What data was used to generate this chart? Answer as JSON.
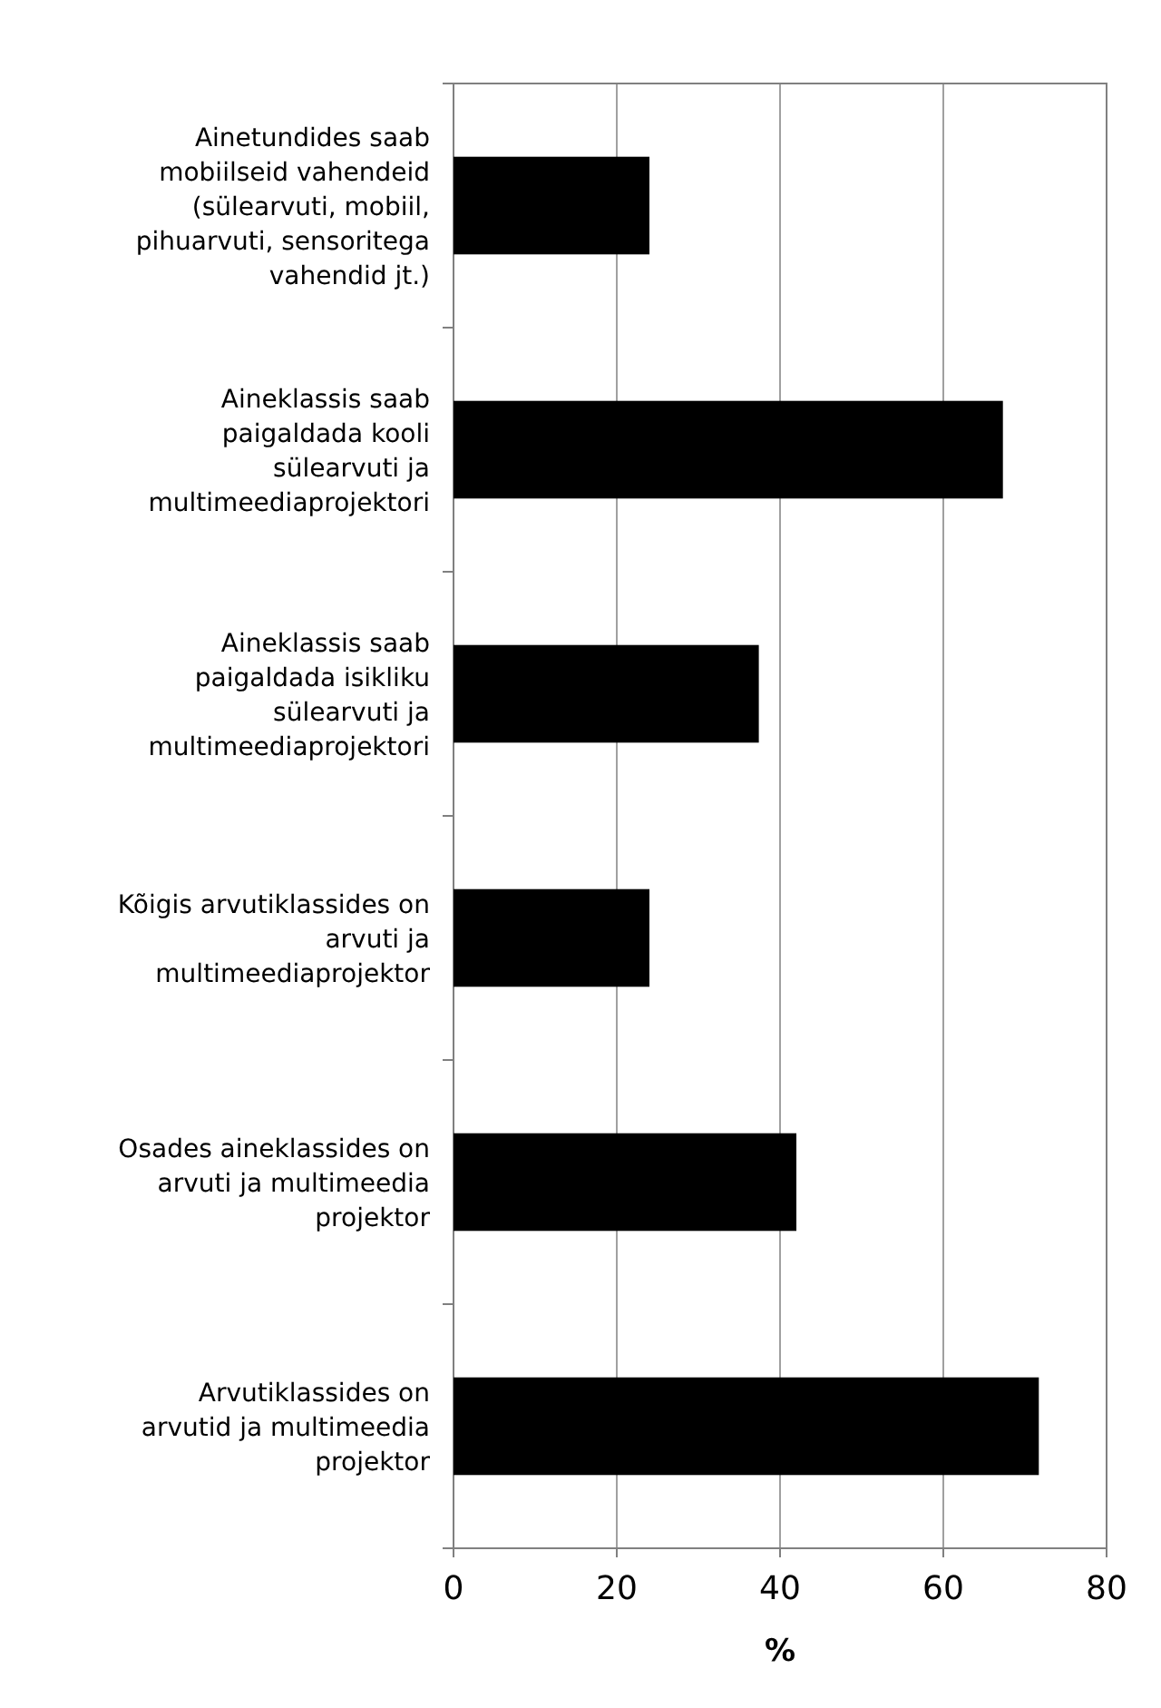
{
  "chart_data": {
    "type": "bar",
    "orientation": "horizontal",
    "categories": [
      "Ainetundides saab mobiilseid vahendeid (sülearvuti, mobiil, pihuarvuti, sensoritega vahendid jt.)",
      "Aineklassis saab paigaldada kooli sülearvuti ja multimeediaprojektori",
      "Aineklassis saab paigaldada isikliku sülearvuti ja multimeediaprojektori",
      "Kõigis arvutiklassides on arvuti ja multimeediaprojektor",
      "Osades aineklassides on arvuti ja multimeedia projektor",
      "Arvutiklassides on arvutid ja multimeedia projektor"
    ],
    "values": [
      24,
      67.3,
      37.4,
      24,
      42,
      71.7
    ],
    "color": "#000000",
    "xlabel": "%",
    "xlim": [
      0,
      80
    ],
    "xticks": [
      0,
      20,
      40,
      60,
      80
    ],
    "grid": "x"
  }
}
